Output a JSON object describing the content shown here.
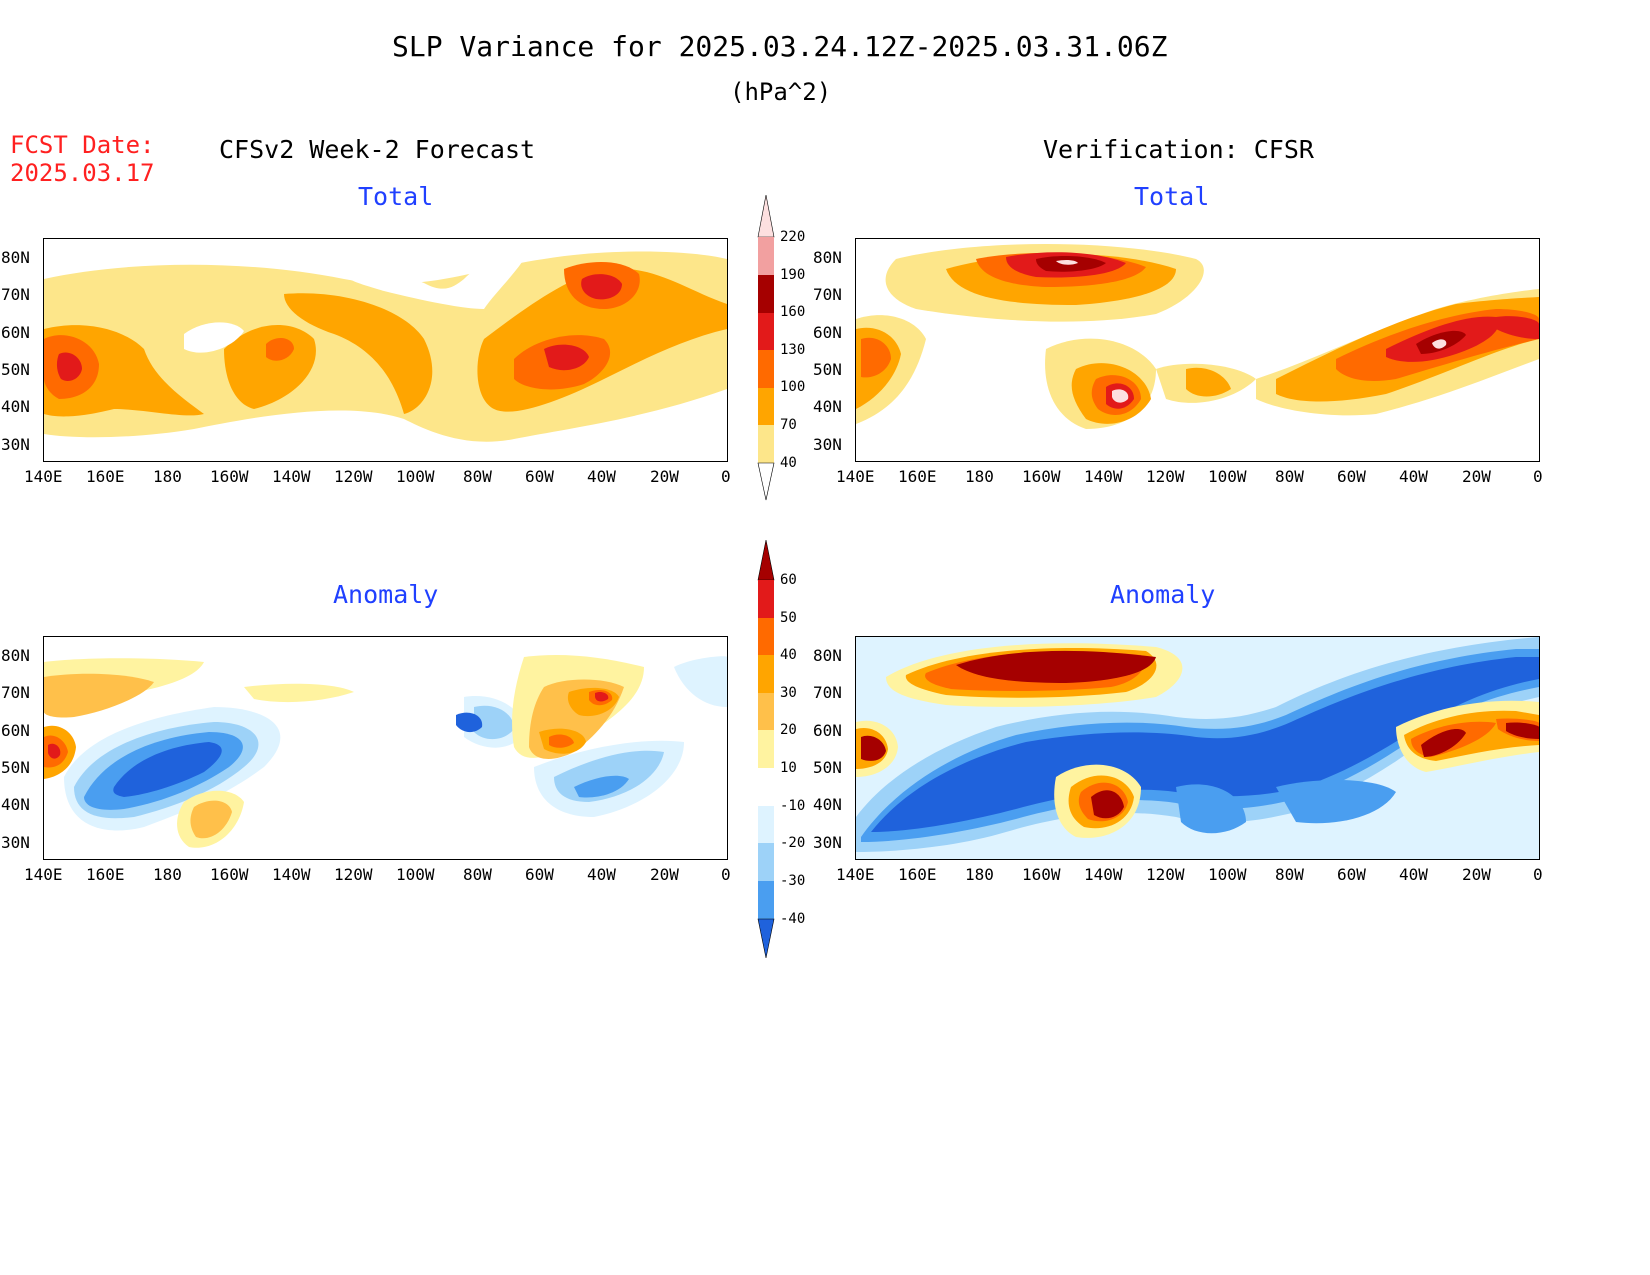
{
  "header": {
    "title": "SLP Variance for 2025.03.24.12Z-2025.03.31.06Z",
    "units": "(hPa^2)",
    "fcst_label": "FCST Date:",
    "fcst_date": "2025.03.17"
  },
  "columns": {
    "left": "CFSv2 Week-2 Forecast",
    "right": "Verification: CFSR"
  },
  "panels": [
    {
      "id": "forecast-total",
      "title": "Total"
    },
    {
      "id": "verification-total",
      "title": "Total"
    },
    {
      "id": "forecast-anomaly",
      "title": "Anomaly"
    },
    {
      "id": "verification-anomaly",
      "title": "Anomaly"
    }
  ],
  "axes": {
    "lat_labels": [
      "80N",
      "70N",
      "60N",
      "50N",
      "40N",
      "30N"
    ],
    "lon_labels": [
      "140E",
      "160E",
      "180",
      "160W",
      "140W",
      "120W",
      "100W",
      "80W",
      "60W",
      "40W",
      "20W",
      "0"
    ]
  },
  "colorbars": {
    "total": {
      "levels": [
        "40",
        "70",
        "100",
        "130",
        "160",
        "190",
        "220"
      ],
      "colors": [
        "#fde68a",
        "#ffa500",
        "#ff6a00",
        "#e21a1a",
        "#a50000",
        "#f2a0a0",
        "#fde0e0"
      ]
    },
    "anomaly": {
      "levels": [
        "60",
        "50",
        "40",
        "30",
        "20",
        "10",
        "-10",
        "-20",
        "-30",
        "-40"
      ],
      "colors": [
        "#a50000",
        "#e21a1a",
        "#ff6a00",
        "#ffa500",
        "#ffc04a",
        "#fff3a0",
        "#ffffff",
        "#def3ff",
        "#9dd2f8",
        "#4a9ef0",
        "#1f62dc"
      ]
    }
  }
}
